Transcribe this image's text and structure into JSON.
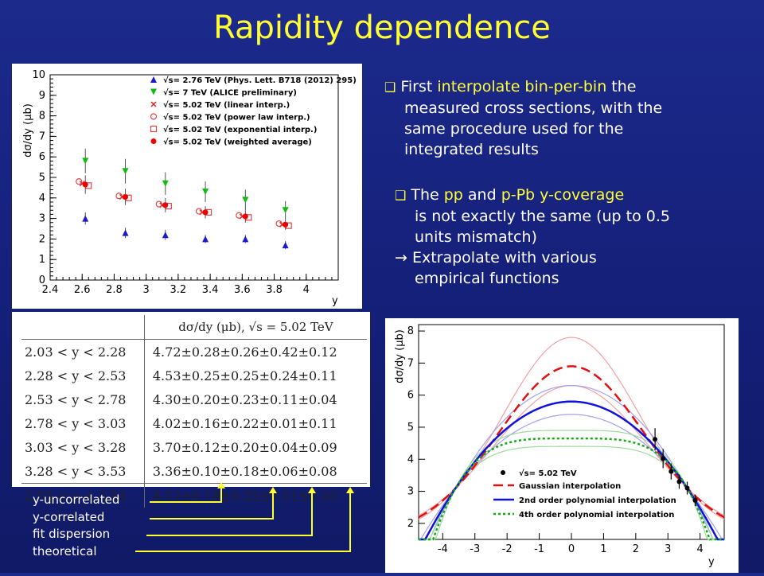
{
  "page": {
    "title": "Rapidity dependence"
  },
  "bullets": {
    "b1": {
      "pre": "First ",
      "highlight": "interpolate bin-per-bin",
      "post": " the",
      "line2": "measured cross sections, with the",
      "line3": "same procedure used for the",
      "line4": "integrated results"
    },
    "b2": {
      "pre": "The ",
      "hl1": "pp",
      "mid": " and ",
      "hl2": "p-Pb y-coverage",
      "line2": "is not exactly the same (up to 0.5",
      "line3": "units mismatch)",
      "arrow_text": " Extrapolate with various",
      "line5": "empirical functions"
    }
  },
  "table": {
    "header_formula": "dσ/dy (μb), √s = 5.02 TeV",
    "rows": [
      {
        "range": "2.03 < y < 2.28",
        "value": "4.72±0.28±0.26±0.42±0.12"
      },
      {
        "range": "2.28 < y < 2.53",
        "value": "4.53±0.25±0.25±0.24±0.11"
      },
      {
        "range": "2.53 < y < 2.78",
        "value": "4.30±0.20±0.23±0.11±0.04"
      },
      {
        "range": "2.78 < y < 3.03",
        "value": "4.02±0.16±0.22±0.01±0.11"
      },
      {
        "range": "3.03 < y < 3.28",
        "value": "3.70±0.12±0.20±0.04±0.09"
      },
      {
        "range": "3.28 < y < 3.53",
        "value": "3.36±0.10±0.18±0.06±0.08"
      }
    ],
    "total": {
      "range": "2.03 < y < 3.53",
      "value": "4.12±0.18±0.23±0.11±0.10"
    }
  },
  "uncertainty_labels": [
    "y-uncorrelated",
    "y-correlated",
    "fit dispersion",
    "theoretical"
  ],
  "colors": {
    "title": "#ffff33",
    "text": "#ffffff",
    "arrows": "#ffff33"
  },
  "chart_data": [
    {
      "type": "scatter",
      "title": "",
      "xlabel": "y",
      "ylabel": "dσ/dy (μb)",
      "xlim": [
        2.4,
        4.2
      ],
      "ylim": [
        0,
        10
      ],
      "x_ticks": [
        "2.4",
        "2.6",
        "2.8",
        "3",
        "3.2",
        "3.4",
        "3.6",
        "3.8",
        "4"
      ],
      "y_ticks": [
        "0",
        "1",
        "2",
        "3",
        "4",
        "5",
        "6",
        "7",
        "8",
        "9",
        "10"
      ],
      "legend_position": "top-right",
      "series": [
        {
          "name": "√s= 2.76 TeV (Phys. Lett. B718 (2012) 295)",
          "marker": "triangle-up",
          "color": "#1a1acc",
          "x": [
            2.62,
            2.87,
            3.12,
            3.37,
            3.62,
            3.87
          ],
          "y": [
            3.0,
            2.3,
            2.2,
            2.0,
            2.0,
            1.7
          ],
          "err": [
            0.3,
            0.25,
            0.25,
            0.2,
            0.2,
            0.2
          ]
        },
        {
          "name": "√s= 7 TeV (ALICE preliminary)",
          "marker": "triangle-down",
          "color": "#11bb11",
          "x": [
            2.62,
            2.87,
            3.12,
            3.37,
            3.62,
            3.87
          ],
          "y": [
            5.8,
            5.3,
            4.7,
            4.3,
            3.9,
            3.4
          ],
          "err": [
            0.6,
            0.6,
            0.55,
            0.5,
            0.5,
            0.45
          ]
        },
        {
          "name": "√s= 5.02 TeV (linear interp.)",
          "marker": "cross",
          "color": "#dd2222",
          "x": [
            2.6,
            2.85,
            3.1,
            3.35,
            3.6,
            3.85
          ],
          "y": [
            4.7,
            4.05,
            3.65,
            3.3,
            3.1,
            2.7
          ],
          "err": [
            0,
            0,
            0,
            0,
            0,
            0
          ]
        },
        {
          "name": "√s= 5.02 TeV (power law interp.)",
          "marker": "open-circle",
          "color": "#dd4444",
          "x": [
            2.58,
            2.83,
            3.08,
            3.33,
            3.58,
            3.83
          ],
          "y": [
            4.8,
            4.1,
            3.7,
            3.35,
            3.15,
            2.75
          ],
          "err": [
            0,
            0,
            0,
            0,
            0,
            0
          ]
        },
        {
          "name": "√s= 5.02 TeV (exponential interp.)",
          "marker": "open-square",
          "color": "#dd4444",
          "x": [
            2.64,
            2.89,
            3.14,
            3.39,
            3.64,
            3.89
          ],
          "y": [
            4.6,
            4.0,
            3.6,
            3.3,
            3.05,
            2.65
          ],
          "err": [
            0,
            0,
            0,
            0,
            0,
            0
          ]
        },
        {
          "name": "√s= 5.02 TeV (weighted average)",
          "marker": "filled-circle",
          "color": "#ee0000",
          "x": [
            2.62,
            2.87,
            3.12,
            3.37,
            3.62,
            3.87
          ],
          "y": [
            4.65,
            4.05,
            3.65,
            3.3,
            3.1,
            2.7
          ],
          "err": [
            0.45,
            0.4,
            0.35,
            0.3,
            0.3,
            0.25
          ]
        }
      ]
    },
    {
      "type": "line",
      "title": "",
      "xlabel": "y",
      "ylabel": "dσ/dy (μb)",
      "xlim": [
        -4.75,
        4.75
      ],
      "ylim": [
        1.5,
        8.2
      ],
      "x_ticks": [
        "-4",
        "-3",
        "-2",
        "-1",
        "0",
        "1",
        "2",
        "3",
        "4"
      ],
      "y_ticks": [
        "2",
        "3",
        "4",
        "5",
        "6",
        "7",
        "8"
      ],
      "legend_position": "bottom-left",
      "points": {
        "name": "√s= 5.02 TeV",
        "x": [
          2.6,
          2.85,
          3.1,
          3.35,
          3.6,
          3.85
        ],
        "y": [
          4.62,
          4.02,
          3.62,
          3.3,
          3.1,
          2.72
        ],
        "err": [
          0.35,
          0.3,
          0.25,
          0.22,
          0.2,
          0.18
        ]
      },
      "series": [
        {
          "name": "Gaussian interpolation",
          "style": "dashed",
          "color": "#dd1111",
          "peak": 6.9,
          "kind": "gauss",
          "band": [
            6.3,
            7.8
          ]
        },
        {
          "name": "2nd order polynomial interpolation",
          "style": "solid",
          "color": "#1111dd",
          "peak": 5.8,
          "kind": "poly2",
          "band": [
            5.4,
            6.3
          ]
        },
        {
          "name": "4th order polynomial interpolation",
          "style": "dotted",
          "color": "#11aa11",
          "peak": 4.65,
          "kind": "poly4",
          "band": [
            4.4,
            4.9
          ]
        }
      ]
    }
  ]
}
